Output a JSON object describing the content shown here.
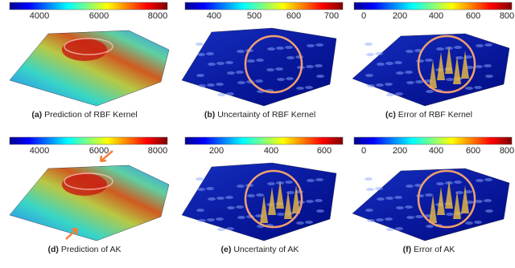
{
  "panels": [
    {
      "label": "(a)",
      "caption": "Prediction of RBF Kernel",
      "colorbar_ticks": [
        4000,
        6000,
        8000
      ]
    },
    {
      "label": "(b)",
      "caption": "Uncertainty of RBF Kernel",
      "colorbar_ticks": [
        400,
        500,
        600,
        700
      ]
    },
    {
      "label": "(c)",
      "caption": "Error of RBF Kernel",
      "colorbar_ticks": [
        0,
        200,
        400,
        600,
        800
      ]
    },
    {
      "label": "(d)",
      "caption": "Prediction of AK",
      "colorbar_ticks": [
        4000,
        6000,
        8000
      ]
    },
    {
      "label": "(e)",
      "caption": "Uncertainty of AK",
      "colorbar_ticks": [
        200,
        400,
        600
      ]
    },
    {
      "label": "(f)",
      "caption": "Error of AK",
      "colorbar_ticks": [
        0,
        200,
        400,
        600,
        800
      ]
    }
  ]
}
